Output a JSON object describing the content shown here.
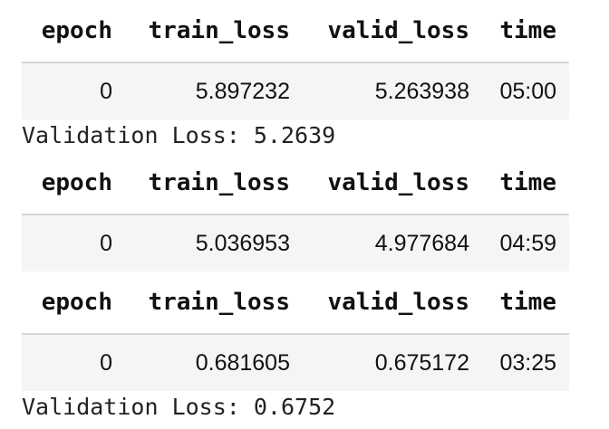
{
  "columns": [
    "epoch",
    "train_loss",
    "valid_loss",
    "time"
  ],
  "tables": [
    {
      "rows": [
        [
          "0",
          "5.897232",
          "5.263938",
          "05:00"
        ]
      ]
    },
    {
      "rows": [
        [
          "0",
          "5.036953",
          "4.977684",
          "04:59"
        ]
      ]
    },
    {
      "rows": [
        [
          "0",
          "0.681605",
          "0.675172",
          "03:25"
        ]
      ]
    }
  ],
  "logs": [
    "Validation Loss: 5.2639",
    "Validation Loss: 0.6752"
  ]
}
